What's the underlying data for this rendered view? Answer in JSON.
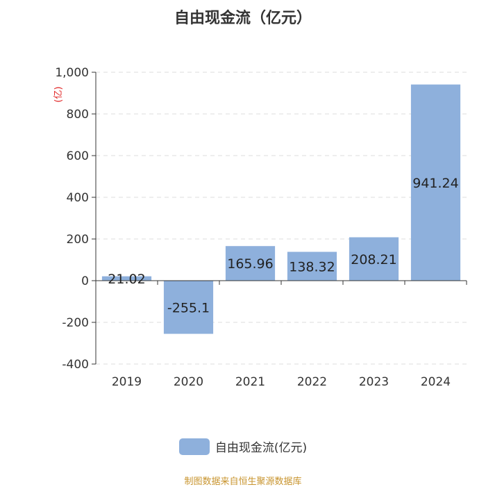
{
  "chart_data": {
    "type": "bar",
    "title": "自由现金流（亿元）",
    "ylabel": "(亿)",
    "categories": [
      "2019",
      "2020",
      "2021",
      "2022",
      "2023",
      "2024"
    ],
    "series": [
      {
        "name": "自由现金流(亿元)",
        "values": [
          21.02,
          -255.1,
          165.96,
          138.32,
          208.21,
          941.24
        ]
      }
    ],
    "data_labels": [
      "21.02",
      "-255.1",
      "165.96",
      "138.32",
      "208.21",
      "941.24"
    ],
    "yticks": [
      "1,000",
      "800",
      "600",
      "400",
      "200",
      "0",
      "-200",
      "-400"
    ],
    "ylim": [
      -400,
      1000
    ],
    "grid": true,
    "legend_position": "bottom",
    "bar_color": "#8eb0dc"
  },
  "source_note": "制图数据来自恒生聚源数据库"
}
